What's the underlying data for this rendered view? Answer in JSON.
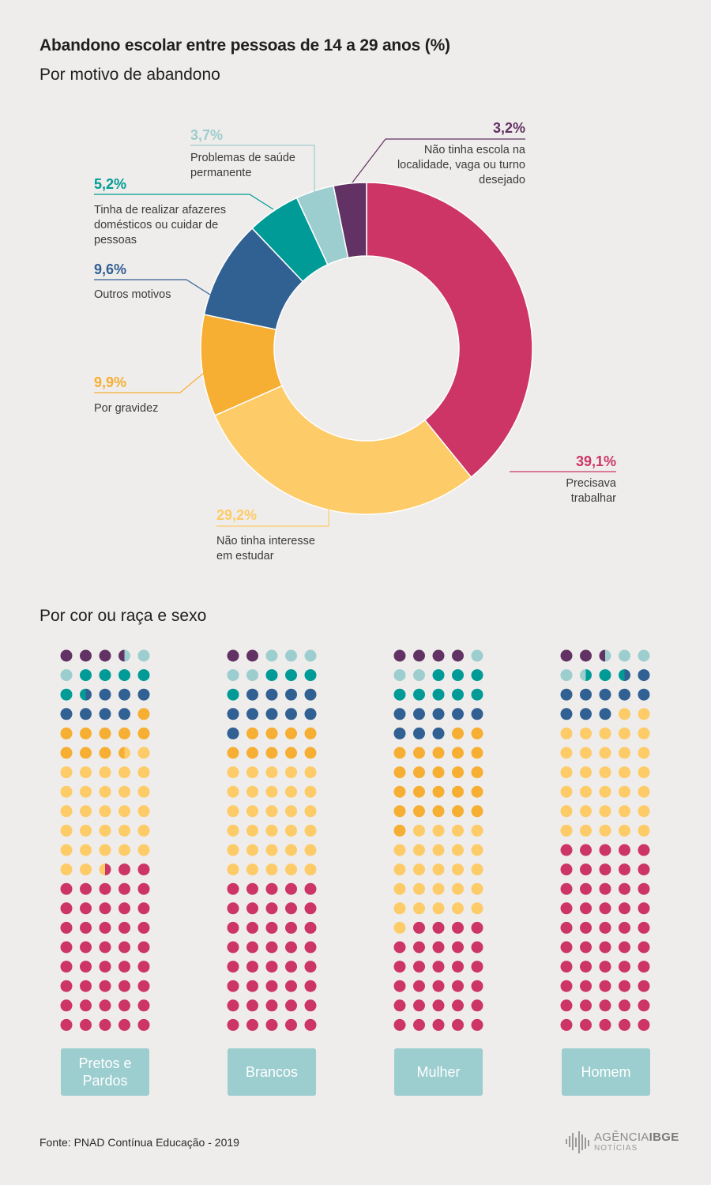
{
  "title": "Abandono escolar entre pessoas de 14 a 29 anos (%)",
  "subtitle": "Por motivo de abandono",
  "section2_title": "Por cor ou raça e sexo",
  "colors": {
    "trabalhar": "#cc3566",
    "interesse": "#fdcb67",
    "gravidez": "#f6ae33",
    "outros": "#316093",
    "afazeres": "#009b96",
    "saude": "#9ccdcf",
    "escola": "#613263"
  },
  "chart_data": [
    {
      "type": "pie",
      "donut": true,
      "slices": [
        {
          "key": "trabalhar",
          "value": 39.1,
          "pct_label": "39,1%",
          "desc": [
            "Precisava",
            "trabalhar"
          ]
        },
        {
          "key": "interesse",
          "value": 29.2,
          "pct_label": "29,2%",
          "desc": [
            "Não tinha interesse",
            "em estudar"
          ]
        },
        {
          "key": "gravidez",
          "value": 9.9,
          "pct_label": "9,9%",
          "desc": [
            "Por gravidez"
          ]
        },
        {
          "key": "outros",
          "value": 9.6,
          "pct_label": "9,6%",
          "desc": [
            "Outros motivos"
          ]
        },
        {
          "key": "afazeres",
          "value": 5.2,
          "pct_label": "5,2%",
          "desc": [
            "Tinha de realizar afazeres",
            "domésticos ou cuidar de",
            "pessoas"
          ]
        },
        {
          "key": "saude",
          "value": 3.7,
          "pct_label": "3,7%",
          "desc": [
            "Problemas de saúde",
            "permanente"
          ]
        },
        {
          "key": "escola",
          "value": 3.2,
          "pct_label": "3,2%",
          "desc": [
            "Não tinha escola na",
            "localidade, vaga ou turno",
            "desejado"
          ]
        }
      ]
    },
    {
      "type": "waffle",
      "grid": {
        "cols": 5,
        "rows": 20
      },
      "stack_order": [
        "escola",
        "saude",
        "afazeres",
        "outros",
        "gravidez",
        "interesse",
        "trabalhar"
      ],
      "groups": [
        {
          "label": "Pretos e Pardos",
          "values": {
            "escola": 3.5,
            "saude": 2.5,
            "afazeres": 5.5,
            "outros": 7.5,
            "gravidez": 9.5,
            "interesse": 29.0,
            "trabalhar": 42.5
          }
        },
        {
          "label": "Brancos",
          "values": {
            "escola": 2.0,
            "saude": 5.0,
            "afazeres": 4.0,
            "outros": 10.0,
            "gravidez": 9.0,
            "interesse": 30.0,
            "trabalhar": 40.0
          }
        },
        {
          "label": "Mulher",
          "values": {
            "escola": 4.0,
            "saude": 3.0,
            "afazeres": 8.0,
            "outros": 8.0,
            "gravidez": 23.0,
            "interesse": 25.0,
            "trabalhar": 29.0
          }
        },
        {
          "label": "Homem",
          "values": {
            "escola": 2.5,
            "saude": 4.0,
            "afazeres": 2.0,
            "outros": 9.5,
            "gravidez": 0,
            "interesse": 32.0,
            "trabalhar": 50.0
          }
        }
      ]
    }
  ],
  "source": "Fonte: PNAD Contínua Educação - 2019",
  "logo": {
    "top": "AGÊNCIA",
    "top_bold": "IBGE",
    "bottom": "NOTÍCIAS"
  }
}
